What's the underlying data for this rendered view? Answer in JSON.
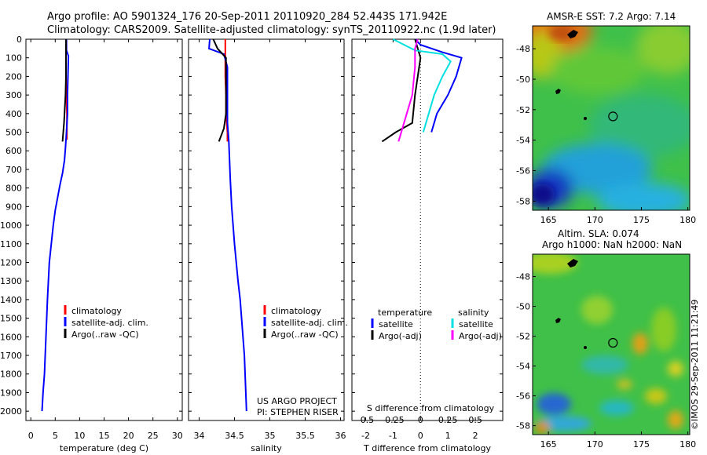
{
  "titles": {
    "line1": "Argo profile: AO 5901324_176 20-Sep-2011 20110920_284 52.443S 171.942E",
    "line2": "Climatology: CARS2009. Satellite-adjusted climatology: synTS_20110922.nc (1.9d later)"
  },
  "maps": {
    "sst_title": "AMSR-E SST: 7.2 Argo: 7.14",
    "sla_title1": "Altim. SLA: 0.074",
    "sla_title2": "Argo h1000: NaN h2000: NaN",
    "lat_ticks": [
      "-48",
      "-50",
      "-52",
      "-54",
      "-56",
      "-58"
    ],
    "lon_ticks": [
      "165",
      "170",
      "175",
      "180"
    ],
    "argo_lon": 171.942,
    "argo_lat": -52.443
  },
  "stamp": "©IMOS 29-Sep-2011 11:21:49",
  "project": {
    "line1": "US ARGO PROJECT",
    "line2": "PI: STEPHEN RISER"
  },
  "colors": {
    "clim": "#ff0000",
    "sat": "#0000ff",
    "argo": "#000000",
    "sal_sat": "#00e0e0",
    "sal_argo": "#ff00ff"
  },
  "chart_data": [
    {
      "type": "line",
      "xlabel": "temperature (deg C)",
      "ylim": [
        0,
        2050
      ],
      "xlim": [
        -1,
        31
      ],
      "x_ticks": [
        "0",
        "5",
        "10",
        "15",
        "20",
        "25",
        "30"
      ],
      "y_ticks": [
        "0",
        "100",
        "200",
        "300",
        "400",
        "500",
        "600",
        "700",
        "800",
        "900",
        "1000",
        "1100",
        "1200",
        "1300",
        "1400",
        "1500",
        "1600",
        "1700",
        "1800",
        "1900",
        "2000"
      ],
      "legend": [
        "climatology",
        "satellite-adj. clim.",
        "Argo(..raw -QC)"
      ],
      "series": [
        {
          "name": "climatology",
          "x": [
            7.2,
            7.2,
            7.2,
            7.3,
            7.4,
            7.4
          ],
          "y": [
            0,
            100,
            200,
            300,
            400,
            540
          ]
        },
        {
          "name": "satellite-adj. clim.",
          "x": [
            7.3,
            7.3,
            7.7,
            7.6,
            7.5,
            7.5,
            7.3,
            7.1,
            6.9,
            6.5,
            6.0,
            5.5,
            5.0,
            4.6,
            4.2,
            3.8,
            3.4,
            3.1,
            2.8,
            2.5,
            2.3
          ],
          "y": [
            0,
            60,
            90,
            200,
            300,
            400,
            500,
            580,
            650,
            720,
            780,
            850,
            920,
            1000,
            1100,
            1200,
            1400,
            1600,
            1800,
            1900,
            2000
          ]
        },
        {
          "name": "Argo(..raw -QC)",
          "x": [
            7.2,
            7.2,
            7.2,
            7.1,
            6.8,
            6.5
          ],
          "y": [
            0,
            100,
            200,
            300,
            450,
            550
          ]
        }
      ]
    },
    {
      "type": "line",
      "xlabel": "salinity",
      "ylim": [
        0,
        2050
      ],
      "xlim": [
        33.85,
        36.05
      ],
      "x_ticks": [
        "34",
        "34.5",
        "35",
        "35.5",
        "36"
      ],
      "legend": [
        "climatology",
        "satellite-adj. clim.",
        "Argo(..raw -QC)"
      ],
      "series": [
        {
          "name": "climatology",
          "x": [
            34.37,
            34.37,
            34.37,
            34.38,
            34.38,
            34.4,
            34.4
          ],
          "y": [
            0,
            100,
            200,
            300,
            400,
            500,
            550
          ]
        },
        {
          "name": "satellite-adj. clim.",
          "x": [
            34.15,
            34.14,
            34.35,
            34.4,
            34.4,
            34.4,
            34.42,
            34.43,
            34.44,
            34.46,
            34.5,
            34.55,
            34.58,
            34.6,
            34.62,
            34.64,
            34.65,
            34.67
          ],
          "y": [
            0,
            50,
            80,
            150,
            300,
            450,
            550,
            650,
            750,
            900,
            1100,
            1300,
            1400,
            1500,
            1600,
            1700,
            1800,
            2000
          ]
        },
        {
          "name": "Argo(..raw -QC)",
          "x": [
            34.2,
            34.26,
            34.38,
            34.38,
            34.38,
            34.35,
            34.28
          ],
          "y": [
            0,
            50,
            100,
            200,
            400,
            480,
            550
          ]
        }
      ]
    },
    {
      "type": "line",
      "xlabel": "T difference from climatology",
      "x2label": "S difference from climatology",
      "ylim": [
        0,
        2050
      ],
      "xlim": [
        -2.5,
        3.0
      ],
      "x_ticks": [
        "-2",
        "-1",
        "0",
        "1",
        "2"
      ],
      "x2_ticks": [
        "-0.5",
        "-0.25",
        "0",
        "0.25",
        "0.5"
      ],
      "legend_headers": [
        "temperature",
        "salinity"
      ],
      "legend": [
        "satellite",
        "Argo(-adj)",
        "satellite",
        "Argo(-adj)"
      ],
      "series": [
        {
          "name": "temperature satellite",
          "x": [
            -0.2,
            0.0,
            0.8,
            1.5,
            1.3,
            1.0,
            0.6,
            0.4
          ],
          "y": [
            0,
            30,
            70,
            100,
            200,
            300,
            400,
            500
          ]
        },
        {
          "name": "temperature Argo(-adj)",
          "x": [
            -0.2,
            -0.1,
            0.0,
            -0.1,
            -0.2,
            -0.3,
            -0.9,
            -1.4
          ],
          "y": [
            0,
            50,
            100,
            200,
            300,
            450,
            500,
            550
          ]
        },
        {
          "name": "salinity satellite",
          "x": [
            -1.0,
            -0.2,
            0.8,
            1.1,
            0.8,
            0.5,
            0.2,
            0.1
          ],
          "y": [
            0,
            60,
            80,
            120,
            200,
            300,
            450,
            500
          ]
        },
        {
          "name": "salinity Argo(-adj)",
          "x": [
            -0.1,
            -0.2,
            -0.2,
            -0.3,
            -0.6,
            -0.8
          ],
          "y": [
            0,
            50,
            150,
            300,
            450,
            550
          ]
        }
      ]
    }
  ]
}
